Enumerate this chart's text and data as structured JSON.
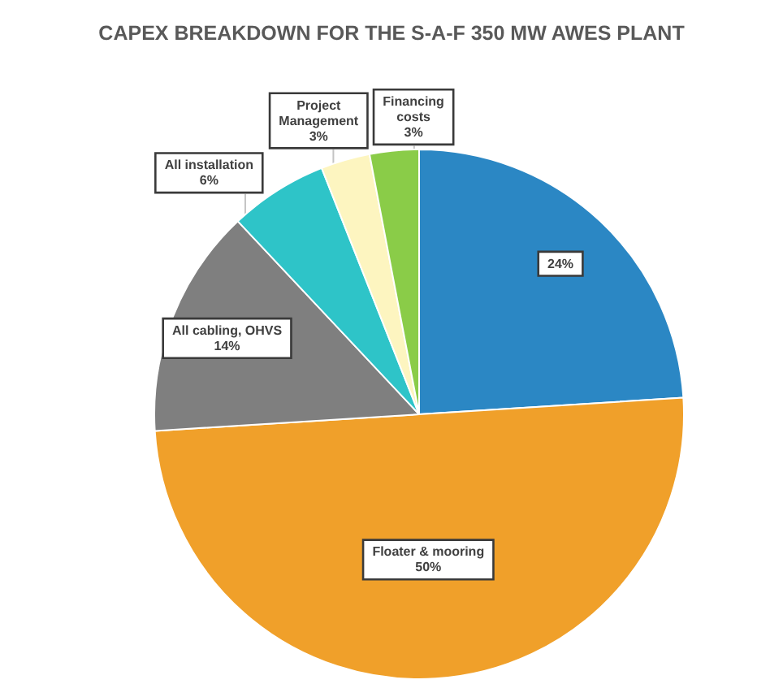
{
  "chart_data": {
    "type": "pie",
    "title": "CAPEX BREAKDOWN FOR THE S-A-F 350 MW AWES PLANT",
    "categories": [
      null,
      "Floater & mooring",
      "All cabling, OHVS",
      "All installation",
      "Project Management",
      "Financing costs"
    ],
    "values": [
      24,
      50,
      14,
      6,
      3,
      3
    ],
    "value_labels": [
      "24%",
      "50%",
      "14%",
      "6%",
      "3%",
      "3%"
    ],
    "colors": [
      "#2b87c4",
      "#f0a02a",
      "#7f7f7f",
      "#2ec4c8",
      "#fdf5c0",
      "#8acc48"
    ],
    "legend": false
  }
}
